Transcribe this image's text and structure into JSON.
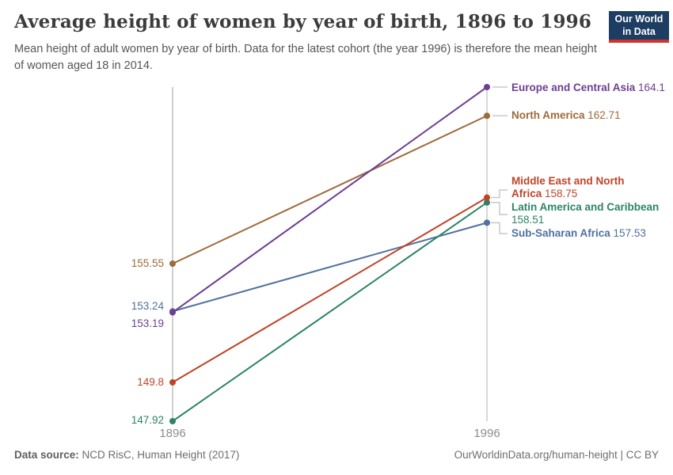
{
  "header": {
    "title": "Average height of women by year of birth, 1896 to 1996",
    "subtitle": "Mean height of adult women by year of birth. Data for the latest cohort (the year 1996) is therefore the mean height of women aged 18 in 2014."
  },
  "logo": {
    "line1": "Our World",
    "line2": "in Data",
    "bg_color": "#1d3d63",
    "accent_color": "#cf342c"
  },
  "chart_data": {
    "type": "line",
    "subtype": "slope",
    "title": "Average height of women by year of birth, 1896 to 1996",
    "x": [
      1896,
      1996
    ],
    "x_tick_labels": [
      "1896",
      "1996"
    ],
    "ylim": [
      147.92,
      164.1
    ],
    "grid": false,
    "legend_position": "right-inline-labels",
    "axis_color": "#cfcfcf",
    "connector_color": "#c9c9c9",
    "series": [
      {
        "name": "Europe and Central Asia",
        "values": [
          153.19,
          164.1
        ],
        "color": "#6d3e91"
      },
      {
        "name": "North America",
        "values": [
          155.55,
          162.71
        ],
        "color": "#9d6b3c"
      },
      {
        "name": "Middle East and North Africa",
        "values": [
          149.8,
          158.75
        ],
        "color": "#bf4427"
      },
      {
        "name": "Latin America and Caribbean",
        "values": [
          147.92,
          158.51
        ],
        "color": "#2c8465"
      },
      {
        "name": "Sub-Saharan Africa",
        "values": [
          153.24,
          157.53
        ],
        "color": "#50709f"
      }
    ]
  },
  "footer": {
    "source_label": "Data source:",
    "source_value": " NCD RisC, Human Height (2017)",
    "credit": "OurWorldinData.org/human-height | CC BY"
  }
}
